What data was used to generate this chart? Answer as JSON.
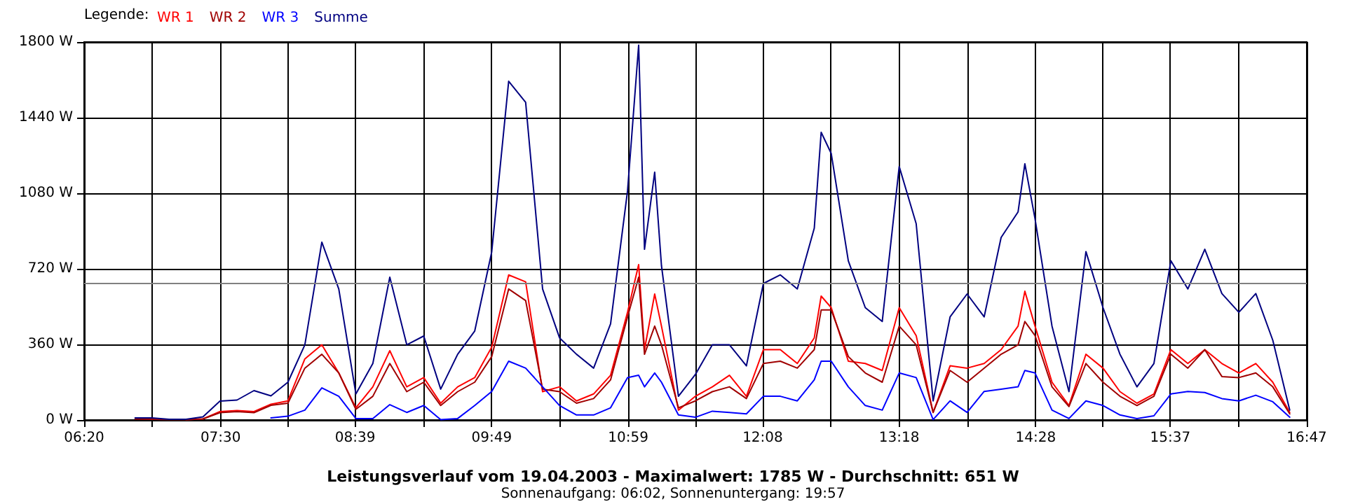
{
  "chart_data": {
    "type": "line",
    "title": "Leistungsverlauf vom 19.04.2003 - Maximalwert: 1785 W - Durchschnitt: 651 W",
    "subtitle": "Sonnenaufgang: 06:02, Sonnenuntergang: 19:57",
    "legend_title": "Legende:",
    "legend": "top left",
    "grid": true,
    "marker": "none",
    "line_style": "solid",
    "x": [
      6.769,
      6.914,
      7.059,
      7.204,
      7.349,
      7.494,
      7.64,
      7.785,
      7.93,
      8.075,
      8.22,
      8.365,
      8.51,
      8.656,
      8.801,
      8.946,
      9.091,
      9.236,
      9.381,
      9.526,
      9.672,
      9.817,
      9.962,
      10.107,
      10.252,
      10.397,
      10.542,
      10.688,
      10.833,
      10.978,
      11.073,
      11.123,
      11.21,
      11.268,
      11.413,
      11.558,
      11.703,
      11.849,
      11.994,
      12.139,
      12.284,
      12.429,
      12.574,
      12.633,
      12.719,
      12.865,
      13.01,
      13.155,
      13.3,
      13.445,
      13.59,
      13.735,
      13.88,
      14.026,
      14.171,
      14.316,
      14.374,
      14.461,
      14.606,
      14.751,
      14.896,
      15.042,
      15.187,
      15.332,
      15.477,
      15.622,
      15.767,
      15.912,
      16.058,
      16.203,
      16.348,
      16.493,
      16.638
    ],
    "series": [
      {
        "name": "WR 1",
        "color": "#ff0000",
        "values": [
          null,
          null,
          null,
          2,
          5,
          40,
          45,
          40,
          75,
          91,
          291,
          358,
          224,
          58,
          158,
          330,
          158,
          202,
          80,
          158,
          202,
          347,
          691,
          658,
          135,
          158,
          91,
          124,
          213,
          513,
          740,
          335,
          600,
          447,
          47,
          113,
          158,
          213,
          113,
          335,
          335,
          269,
          391,
          590,
          535,
          280,
          269,
          236,
          535,
          402,
          36,
          258,
          247,
          269,
          335,
          447,
          613,
          447,
          180,
          69,
          313,
          247,
          135,
          80,
          124,
          335,
          269,
          335,
          269,
          224,
          269,
          180,
          36
        ]
      },
      {
        "name": "WR 2",
        "color": "#a00000",
        "values": [
          5,
          3,
          2,
          2,
          5,
          35,
          40,
          35,
          70,
          80,
          247,
          313,
          224,
          51,
          113,
          269,
          135,
          180,
          69,
          135,
          180,
          302,
          624,
          569,
          147,
          135,
          80,
          102,
          191,
          491,
          680,
          313,
          447,
          358,
          58,
          91,
          135,
          158,
          102,
          269,
          280,
          247,
          335,
          524,
          524,
          302,
          224,
          180,
          447,
          358,
          36,
          236,
          180,
          247,
          313,
          358,
          469,
          402,
          158,
          64,
          269,
          180,
          113,
          69,
          113,
          313,
          247,
          335,
          207,
          202,
          224,
          158,
          29
        ]
      },
      {
        "name": "WR 3",
        "color": "#0000ff",
        "values": [
          null,
          null,
          null,
          null,
          null,
          null,
          null,
          null,
          10,
          18,
          47,
          153,
          113,
          7,
          7,
          73,
          36,
          69,
          2,
          7,
          69,
          136,
          280,
          247,
          158,
          69,
          24,
          24,
          58,
          202,
          213,
          158,
          224,
          180,
          24,
          13,
          42,
          36,
          29,
          113,
          113,
          91,
          191,
          280,
          280,
          158,
          69,
          47,
          224,
          202,
          2,
          91,
          36,
          136,
          147,
          158,
          236,
          224,
          47,
          7,
          91,
          69,
          24,
          7,
          20,
          124,
          136,
          131,
          102,
          91,
          118,
          87,
          13
        ]
      },
      {
        "name": "Summe",
        "color": "#000080",
        "values": [
          10,
          10,
          3,
          3,
          15,
          90,
          95,
          140,
          115,
          180,
          358,
          847,
          624,
          124,
          269,
          680,
          358,
          400,
          147,
          313,
          424,
          800,
          1613,
          1513,
          624,
          391,
          313,
          247,
          458,
          1091,
          1785,
          813,
          1180,
          735,
          113,
          217,
          358,
          358,
          258,
          650,
          691,
          624,
          913,
          1370,
          1269,
          758,
          535,
          469,
          1207,
          935,
          91,
          491,
          600,
          491,
          869,
          991,
          1220,
          958,
          447,
          135,
          802,
          535,
          313,
          158,
          269,
          758,
          624,
          813,
          602,
          513,
          602,
          380,
          47
        ]
      }
    ],
    "xlim": [
      6.3333,
      16.7833
    ],
    "xticks": [
      {
        "value": 6.3333,
        "label": "06:20"
      },
      {
        "value": 6.9167,
        "label": null
      },
      {
        "value": 7.5,
        "label": "07:30"
      },
      {
        "value": 8.075,
        "label": null
      },
      {
        "value": 8.65,
        "label": "08:39"
      },
      {
        "value": 9.2333,
        "label": null
      },
      {
        "value": 9.8167,
        "label": "09:49"
      },
      {
        "value": 10.4,
        "label": null
      },
      {
        "value": 10.9833,
        "label": "10:59"
      },
      {
        "value": 11.5583,
        "label": null
      },
      {
        "value": 12.1333,
        "label": "12:08"
      },
      {
        "value": 12.7167,
        "label": null
      },
      {
        "value": 13.3,
        "label": "13:18"
      },
      {
        "value": 13.8833,
        "label": null
      },
      {
        "value": 14.4667,
        "label": "14:28"
      },
      {
        "value": 15.0417,
        "label": null
      },
      {
        "value": 15.6167,
        "label": "15:37"
      },
      {
        "value": 16.2,
        "label": null
      },
      {
        "value": 16.7833,
        "label": "16:47"
      }
    ],
    "ylim": [
      0,
      1800
    ],
    "yticks": [
      {
        "value": 0,
        "label": "0 W"
      },
      {
        "value": 360,
        "label": "360 W"
      },
      {
        "value": 720,
        "label": "720 W"
      },
      {
        "value": 1080,
        "label": "1080 W"
      },
      {
        "value": 1440,
        "label": "1440 W"
      },
      {
        "value": 1800,
        "label": "1800 W"
      }
    ],
    "ref_lines": [
      {
        "axis": "y",
        "value": 651,
        "color": "#808080"
      }
    ]
  }
}
